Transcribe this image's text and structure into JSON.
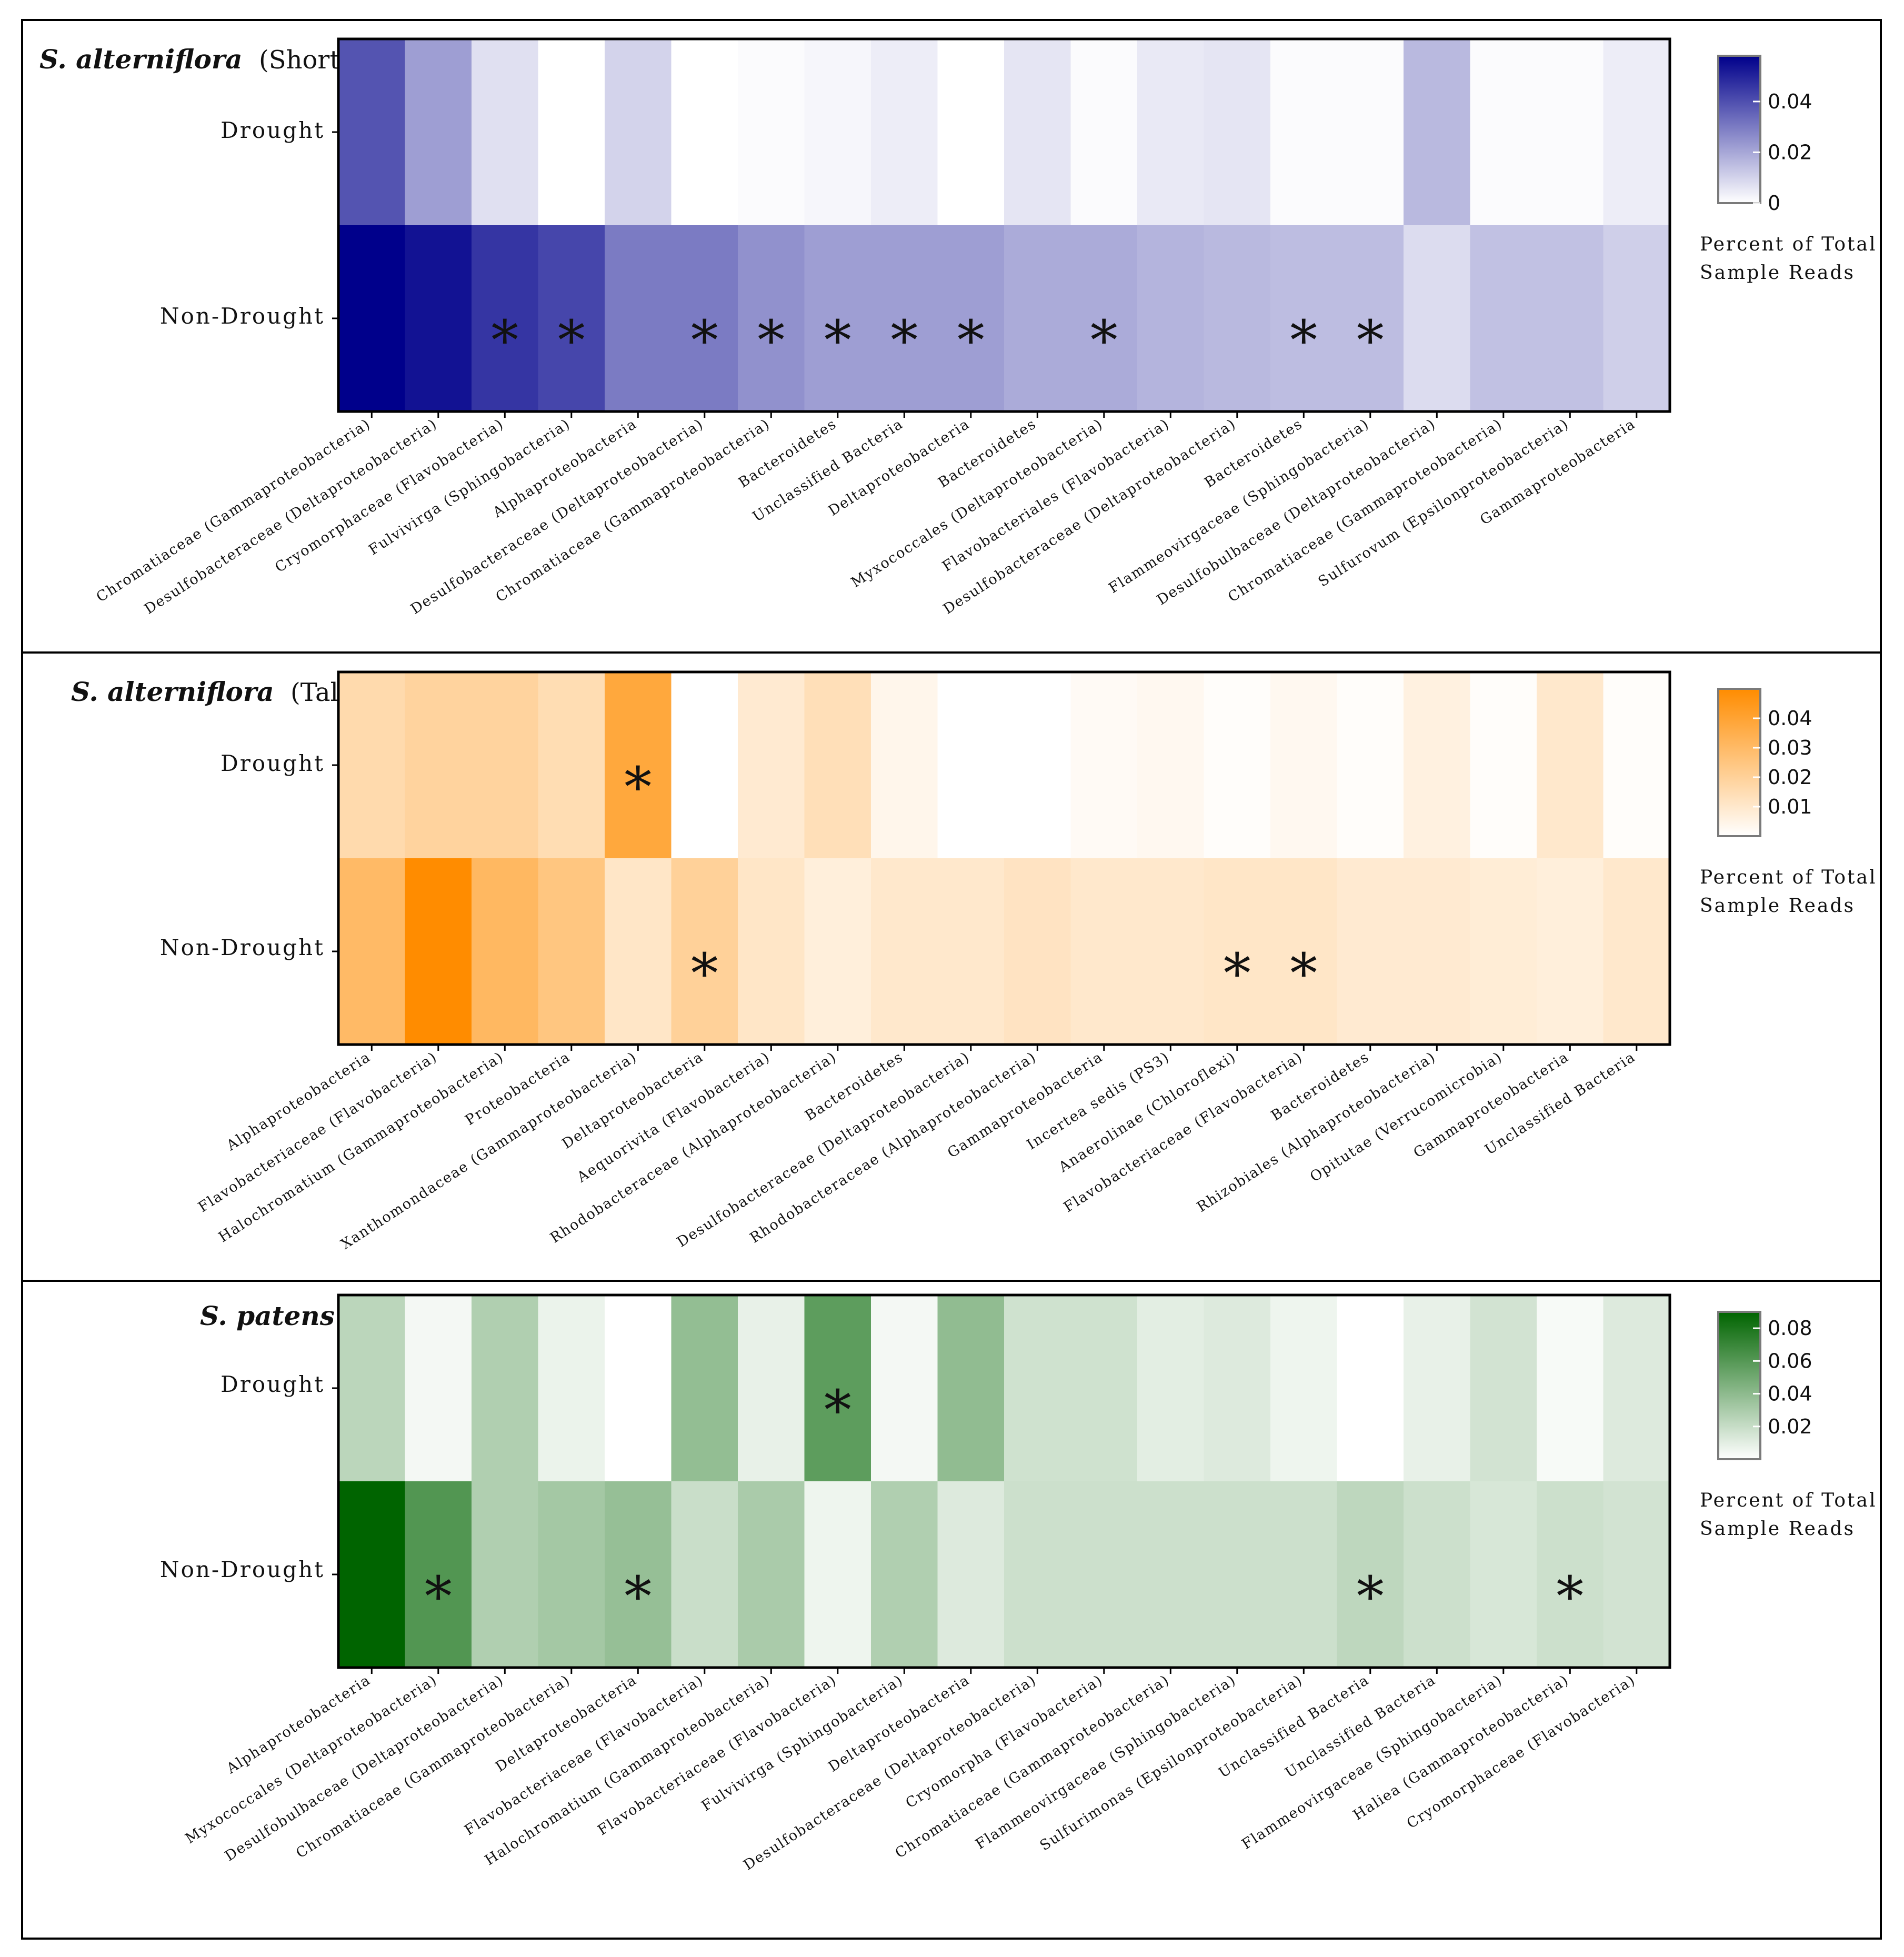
{
  "chart_data": [
    {
      "type": "heatmap",
      "title_italic": "S. alterniflora",
      "title_suffix": "(Short)",
      "rows": [
        "Drought",
        "Non-Drought"
      ],
      "categories": [
        "Chromatiaceae (Gammaproteobacteria)",
        "Desulfobacteraceae (Deltaproteobacteria)",
        "Cryomorphaceae (Flavobacteria)",
        "Fulvivirga (Sphingobacteria)",
        "Alphaproteobacteria",
        "Desulfobacteraceae (Deltaproteobacteria)",
        "Chromatiaceae (Gammaproteobacteria)",
        "Bacteroidetes",
        "Unclassified Bacteria",
        "Deltaproteobacteria",
        "Bacteroidetes",
        "Myxococcales (Deltaproteobacteria)",
        "Flavobacteriales (Flavobacteria)",
        "Desulfobacteraceae (Deltaproteobacteria)",
        "Bacteroidetes",
        "Flammeovirgaceae (Sphingobacteria)",
        "Desulfobulbaceae (Deltaproteobacteria)",
        "Chromatiaceae (Gammaproteobacteria)",
        "Sulfurovum (Epsilonproteobacteria)",
        "Gammaproteobacteria"
      ],
      "values": [
        [
          0.039,
          0.022,
          0.007,
          0.0,
          0.01,
          0.0,
          0.001,
          0.002,
          0.004,
          0.0,
          0.006,
          0.001,
          0.005,
          0.006,
          0.001,
          0.001,
          0.016,
          0.001,
          0.001,
          0.004
        ],
        [
          0.058,
          0.054,
          0.046,
          0.042,
          0.03,
          0.03,
          0.025,
          0.022,
          0.022,
          0.022,
          0.019,
          0.019,
          0.017,
          0.016,
          0.015,
          0.015,
          0.008,
          0.014,
          0.014,
          0.011
        ]
      ],
      "asterisks": {
        "Drought": [],
        "Non-Drought": [
          2,
          3,
          5,
          6,
          7,
          8,
          9,
          11,
          14,
          15
        ]
      },
      "color_low": "#ffffff",
      "color_high": "#00008b",
      "vmax": 0.058,
      "colorbar_ticks": [
        "0",
        "0.02",
        "0.04"
      ],
      "colorbar_tick_values": [
        0,
        0.02,
        0.04
      ],
      "colorbar_label": [
        "Percent of Total",
        "Sample Reads"
      ]
    },
    {
      "type": "heatmap",
      "title_italic": "S. alterniflora",
      "title_suffix": "(Tall)",
      "rows": [
        "Drought",
        "Non-Drought"
      ],
      "categories": [
        "Alphaproteobacteria",
        "Flavobacteriaceae (Flavobacteria)",
        "Halochromatium (Gammaproteobacteria)",
        "Proteobacteria",
        "Xanthomondaceae (Gammaproteobacteria)",
        "Deltaproteobacteria",
        "Aequorivita (Flavobacteria)",
        "Rhodobacteraceae (Alphaproteobacteria)",
        "Bacteroidetes",
        "Desulfobacteraceae (Deltaproteobacteria)",
        "Rhodobacteraceae (Alphaproteobacteria)",
        "Gammaproteobacteria",
        "Incertea sedis (PS3)",
        "Anaerolinae (Chloroflexi)",
        "Flavobacteriaceae (Flavobacteria)",
        "Bacteroidetes",
        "Rhizobiales (Alphaproteobacteria)",
        "Opitutae (Verrucomicrobia)",
        "Gammaproteobacteria",
        "Unclassified Bacteria"
      ],
      "values": [
        [
          0.016,
          0.019,
          0.019,
          0.015,
          0.038,
          0.0,
          0.009,
          0.014,
          0.004,
          0.0,
          0.0,
          0.002,
          0.003,
          0.001,
          0.003,
          0.001,
          0.006,
          0.001,
          0.01,
          0.001
        ],
        [
          0.03,
          0.051,
          0.031,
          0.025,
          0.011,
          0.02,
          0.011,
          0.007,
          0.01,
          0.01,
          0.012,
          0.01,
          0.01,
          0.011,
          0.011,
          0.009,
          0.009,
          0.008,
          0.007,
          0.01
        ]
      ],
      "asterisks": {
        "Drought": [
          4
        ],
        "Non-Drought": [
          5,
          13,
          14
        ]
      },
      "color_low": "#ffffff",
      "color_high": "#ff8c00",
      "vmax": 0.05,
      "colorbar_ticks": [
        "0.01",
        "0.02",
        "0.03",
        "0.04"
      ],
      "colorbar_tick_values": [
        0.01,
        0.02,
        0.03,
        0.04
      ],
      "colorbar_label": [
        "Percent of Total",
        "Sample Reads"
      ]
    },
    {
      "type": "heatmap",
      "title_italic": "S. patens",
      "title_suffix": "",
      "rows": [
        "Drought",
        "Non-Drought"
      ],
      "categories": [
        "Alphaproteobacteria",
        "Myxococcales (Deltaproteobacteria)",
        "Desulfobulbaceae (Deltaproteobacteria)",
        "Chromatiaceae (Gammaproteobacteria)",
        "Deltaproteobacteria",
        "Flavobacteriaceae (Flavobacteria)",
        "Halochromatium (Gammaproteobacteria)",
        "Flavobacteriaceae (Flavobacteria)",
        "Fulvivirga (Sphingobacteria)",
        "Deltaproteobacteria",
        "Desulfobacteraceae (Deltaproteobacteria)",
        "Cryomorpha (Flavobacteria)",
        "Chromatiaceae (Gammaproteobacteria)",
        "Flammeovirgaceae (Sphingobacteria)",
        "Sulfurimonas (Epsilonproteobacteria)",
        "Unclassified Bacteria",
        "Unclassified Bacteria",
        "Flammeovirgaceae (Sphingobacteria)",
        "Haliea (Gammaproteobacteria)",
        "Cryomorphaceae (Flavobacteria)"
      ],
      "values": [
        [
          0.024,
          0.004,
          0.028,
          0.007,
          0.0,
          0.038,
          0.008,
          0.057,
          0.004,
          0.039,
          0.017,
          0.017,
          0.01,
          0.012,
          0.006,
          0.0,
          0.008,
          0.016,
          0.003,
          0.012
        ],
        [
          0.09,
          0.061,
          0.028,
          0.032,
          0.037,
          0.019,
          0.03,
          0.006,
          0.028,
          0.012,
          0.018,
          0.018,
          0.018,
          0.018,
          0.018,
          0.023,
          0.018,
          0.014,
          0.018,
          0.016
        ]
      ],
      "asterisks": {
        "Drought": [
          7
        ],
        "Non-Drought": [
          1,
          4,
          15,
          18
        ]
      },
      "color_low": "#ffffff",
      "color_high": "#006400",
      "vmax": 0.09,
      "colorbar_ticks": [
        "0.02",
        "0.04",
        "0.06",
        "0.08"
      ],
      "colorbar_tick_values": [
        0.02,
        0.04,
        0.06,
        0.08
      ],
      "colorbar_label": [
        "Percent of Total",
        "Sample Reads"
      ]
    }
  ]
}
